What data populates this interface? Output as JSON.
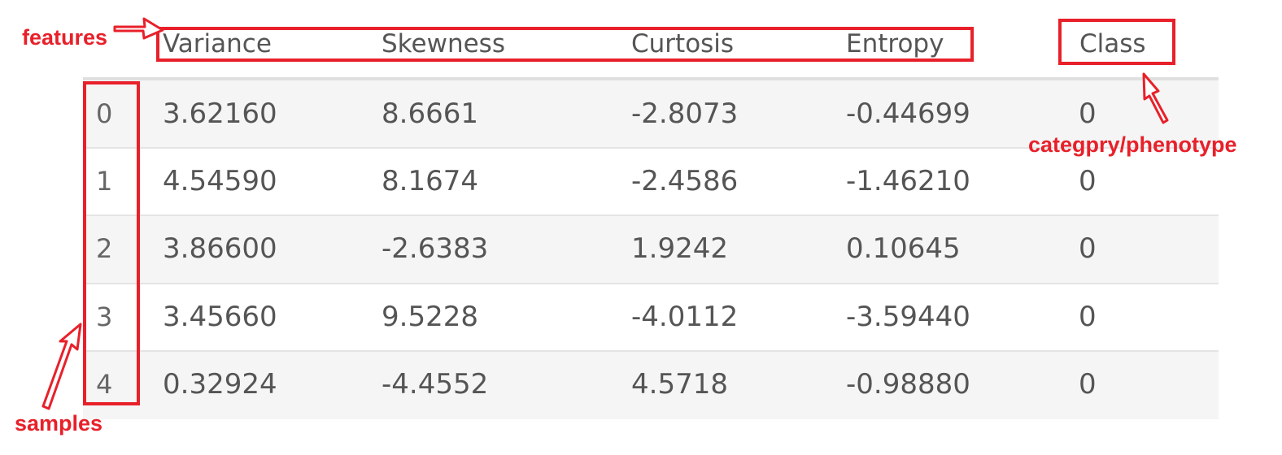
{
  "table": {
    "columns": [
      "Variance",
      "Skewness",
      "Curtosis",
      "Entropy",
      "Class"
    ],
    "rows": [
      {
        "index": "0",
        "variance": "3.62160",
        "skewness": "8.6661",
        "curtosis": "-2.8073",
        "entropy": "-0.44699",
        "class": "0"
      },
      {
        "index": "1",
        "variance": "4.54590",
        "skewness": "8.1674",
        "curtosis": "-2.4586",
        "entropy": "-1.46210",
        "class": "0"
      },
      {
        "index": "2",
        "variance": "3.86600",
        "skewness": "-2.6383",
        "curtosis": "1.9242",
        "entropy": "0.10645",
        "class": "0"
      },
      {
        "index": "3",
        "variance": "3.45660",
        "skewness": "9.5228",
        "curtosis": "-4.0112",
        "entropy": "-3.59440",
        "class": "0"
      },
      {
        "index": "4",
        "variance": "0.32924",
        "skewness": "-4.4552",
        "curtosis": "4.5718",
        "entropy": "-0.98880",
        "class": "0"
      }
    ]
  },
  "annotations": {
    "features": "features",
    "samples": "samples",
    "class_label": "categpry/phenotype"
  },
  "colors": {
    "annotation": "#e8202a",
    "text": "#555555",
    "band": "#f5f5f5"
  }
}
